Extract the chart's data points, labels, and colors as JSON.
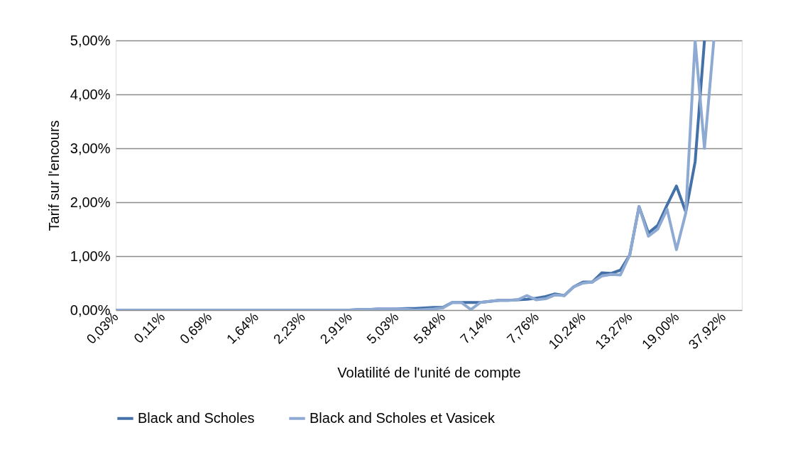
{
  "chart_data": {
    "type": "line",
    "xlabel": "Volatilité de l'unité de compte",
    "ylabel": "Tarif sur l'encours",
    "categories": [
      "0,03%",
      null,
      null,
      null,
      null,
      "0,11%",
      null,
      null,
      null,
      null,
      "0,69%",
      null,
      null,
      null,
      null,
      "1,64%",
      null,
      null,
      null,
      null,
      "2,23%",
      null,
      null,
      null,
      null,
      "2,91%",
      null,
      null,
      null,
      null,
      "5,03%",
      null,
      null,
      null,
      null,
      "5,84%",
      null,
      null,
      null,
      null,
      "7,14%",
      null,
      null,
      null,
      null,
      "7,76%",
      null,
      null,
      null,
      null,
      "10,24%",
      null,
      null,
      null,
      null,
      "13,27%",
      null,
      null,
      null,
      null,
      "19,00%",
      null,
      null,
      null,
      null,
      "37,92%",
      null,
      null
    ],
    "series": [
      {
        "name": "Black and Scholes",
        "color": "#4371a8",
        "values": [
          0,
          0,
          0,
          0,
          0,
          0,
          0,
          0,
          0,
          0,
          0,
          0,
          0,
          0,
          0,
          0,
          0,
          0,
          0,
          0,
          0,
          0,
          0,
          0,
          0,
          0,
          0.01,
          0.01,
          0.02,
          0.02,
          0.02,
          0.03,
          0.03,
          0.04,
          0.05,
          0.05,
          0.14,
          0.14,
          0.14,
          0.14,
          0.16,
          0.18,
          0.18,
          0.19,
          0.2,
          0.22,
          0.25,
          0.3,
          0.27,
          0.43,
          0.52,
          0.52,
          0.69,
          0.68,
          0.74,
          1.02,
          1.92,
          1.43,
          1.57,
          1.95,
          2.3,
          1.82,
          2.75,
          5.0,
          null,
          null,
          null,
          null
        ]
      },
      {
        "name": "Black and Scholes et Vasicek",
        "color": "#8eaad3",
        "values": [
          0,
          0,
          0,
          0,
          0,
          0,
          0,
          0,
          0,
          0,
          0,
          0,
          0,
          0,
          0,
          0,
          0,
          0,
          0,
          0,
          0,
          0,
          0,
          0,
          0,
          0,
          0.01,
          0.01,
          0.02,
          0.02,
          0.02,
          0.02,
          0.0,
          0.01,
          0.02,
          0.04,
          0.14,
          0.14,
          0.01,
          0.14,
          0.16,
          0.18,
          0.18,
          0.19,
          0.27,
          0.19,
          0.21,
          0.28,
          0.27,
          0.43,
          0.5,
          0.52,
          0.63,
          0.66,
          0.65,
          1.02,
          1.92,
          1.37,
          1.5,
          1.87,
          1.12,
          1.8,
          5.0,
          3.0,
          5.0,
          null,
          null,
          null
        ]
      }
    ],
    "ylim": [
      0,
      5
    ],
    "yticks": [
      {
        "value": 0,
        "label": "0,00%"
      },
      {
        "value": 1,
        "label": "1,00%"
      },
      {
        "value": 2,
        "label": "2,00%"
      },
      {
        "value": 3,
        "label": "3,00%"
      },
      {
        "value": 4,
        "label": "4,00%"
      },
      {
        "value": 5,
        "label": "5,00%"
      }
    ],
    "grid": "y",
    "legend": "bottom",
    "marker": "none",
    "line_style": "solid"
  }
}
